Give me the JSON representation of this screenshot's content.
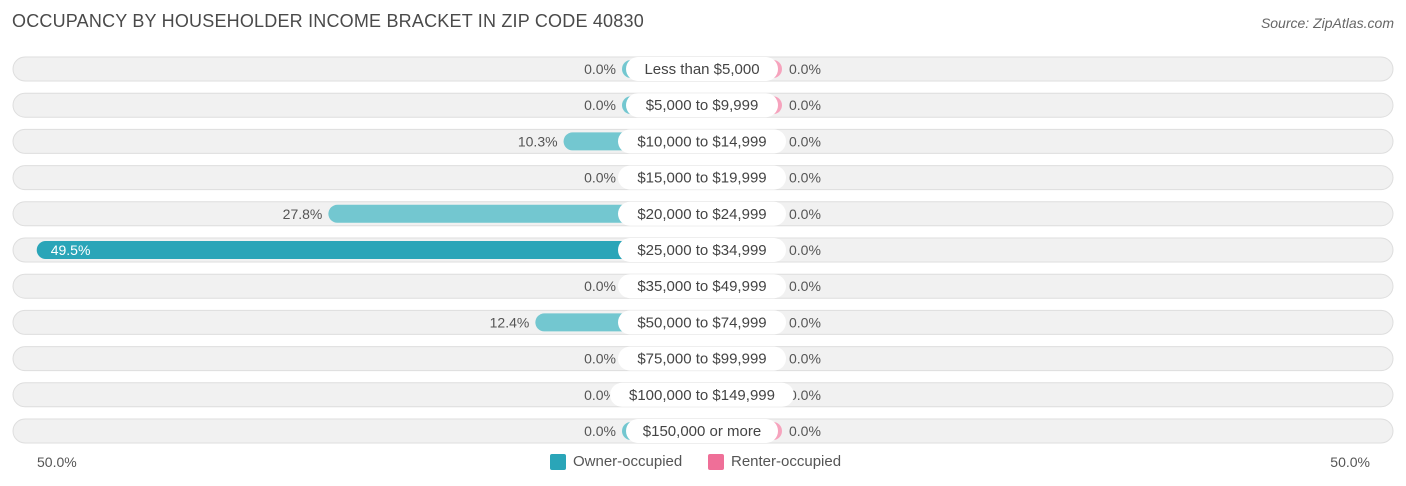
{
  "title": "OCCUPANCY BY HOUSEHOLDER INCOME BRACKET IN ZIP CODE 40830",
  "source": "Source: ZipAtlas.com",
  "axis": {
    "left_label": "50.0%",
    "right_label": "50.0%"
  },
  "legend": {
    "owner_label": "Owner-occupied",
    "renter_label": "Renter-occupied"
  },
  "colors": {
    "owner": "#73c7d0",
    "owner_strong": "#2aa5b8",
    "renter": "#f6a3bd",
    "renter_legend": "#ef6f98",
    "row_bg": "#efefef"
  },
  "chart_data": {
    "type": "bar",
    "orientation": "horizontal-diverging",
    "categories": [
      "Less than $5,000",
      "$5,000 to $9,999",
      "$10,000 to $14,999",
      "$15,000 to $19,999",
      "$20,000 to $24,999",
      "$25,000 to $34,999",
      "$35,000 to $49,999",
      "$50,000 to $74,999",
      "$75,000 to $99,999",
      "$100,000 to $149,999",
      "$150,000 or more"
    ],
    "series": [
      {
        "name": "Owner-occupied",
        "values": [
          0.0,
          0.0,
          10.3,
          0.0,
          27.8,
          49.5,
          0.0,
          12.4,
          0.0,
          0.0,
          0.0
        ],
        "labels": [
          "0.0%",
          "0.0%",
          "10.3%",
          "0.0%",
          "27.8%",
          "49.5%",
          "0.0%",
          "12.4%",
          "0.0%",
          "0.0%",
          "0.0%"
        ]
      },
      {
        "name": "Renter-occupied",
        "values": [
          0.0,
          0.0,
          0.0,
          0.0,
          0.0,
          0.0,
          0.0,
          0.0,
          0.0,
          0.0,
          0.0
        ],
        "labels": [
          "0.0%",
          "0.0%",
          "0.0%",
          "0.0%",
          "0.0%",
          "0.0%",
          "0.0%",
          "0.0%",
          "0.0%",
          "0.0%",
          "0.0%"
        ]
      }
    ],
    "xlim": [
      -50,
      50
    ],
    "grid": false,
    "legend_position": "bottom-center"
  }
}
